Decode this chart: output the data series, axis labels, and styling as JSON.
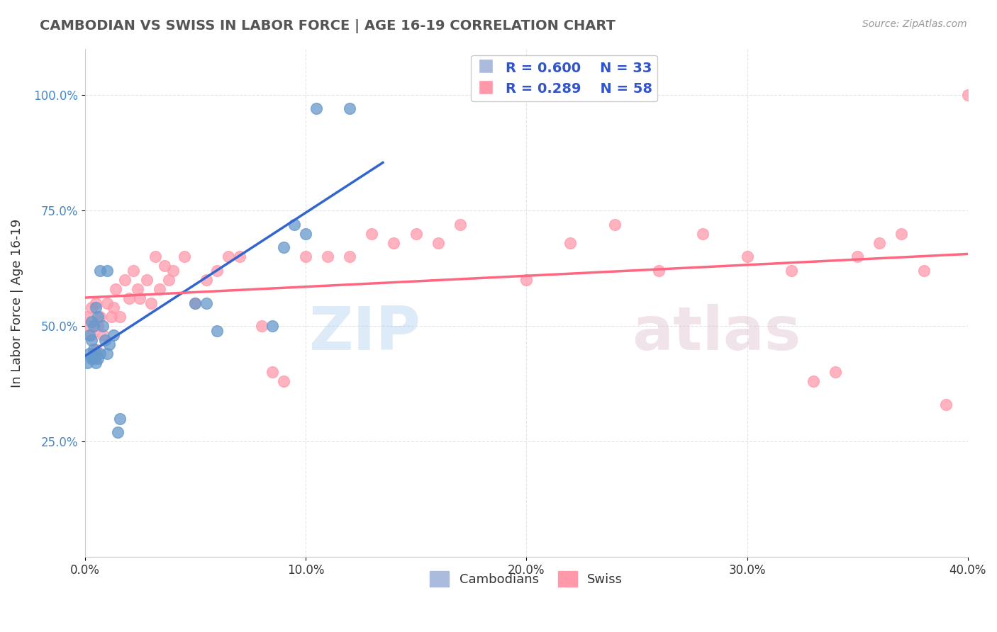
{
  "title": "CAMBODIAN VS SWISS IN LABOR FORCE | AGE 16-19 CORRELATION CHART",
  "source_text": "Source: ZipAtlas.com",
  "ylabel": "In Labor Force | Age 16-19",
  "xlim": [
    0.0,
    0.4
  ],
  "ylim": [
    0.0,
    1.1
  ],
  "xtick_labels": [
    "0.0%",
    "10.0%",
    "20.0%",
    "30.0%",
    "40.0%"
  ],
  "xtick_values": [
    0.0,
    0.1,
    0.2,
    0.3,
    0.4
  ],
  "ytick_labels": [
    "25.0%",
    "50.0%",
    "75.0%",
    "100.0%"
  ],
  "ytick_values": [
    0.25,
    0.5,
    0.75,
    1.0
  ],
  "cambodian_color": "#6699CC",
  "swiss_color": "#FF99AA",
  "cambodian_R": 0.6,
  "cambodian_N": 33,
  "swiss_R": 0.289,
  "swiss_N": 58,
  "cambodian_scatter_x": [
    0.001,
    0.002,
    0.002,
    0.003,
    0.003,
    0.003,
    0.004,
    0.004,
    0.004,
    0.005,
    0.005,
    0.005,
    0.006,
    0.006,
    0.007,
    0.007,
    0.008,
    0.009,
    0.01,
    0.01,
    0.011,
    0.013,
    0.015,
    0.016,
    0.05,
    0.055,
    0.06,
    0.085,
    0.09,
    0.095,
    0.1,
    0.105,
    0.12
  ],
  "cambodian_scatter_y": [
    0.42,
    0.44,
    0.48,
    0.43,
    0.47,
    0.51,
    0.43,
    0.45,
    0.5,
    0.42,
    0.44,
    0.54,
    0.43,
    0.52,
    0.44,
    0.62,
    0.5,
    0.47,
    0.44,
    0.62,
    0.46,
    0.48,
    0.27,
    0.3,
    0.55,
    0.55,
    0.49,
    0.5,
    0.67,
    0.72,
    0.7,
    0.97,
    0.97
  ],
  "swiss_scatter_x": [
    0.001,
    0.002,
    0.003,
    0.003,
    0.005,
    0.005,
    0.006,
    0.007,
    0.008,
    0.01,
    0.012,
    0.013,
    0.014,
    0.016,
    0.018,
    0.02,
    0.022,
    0.024,
    0.025,
    0.028,
    0.03,
    0.032,
    0.034,
    0.036,
    0.038,
    0.04,
    0.045,
    0.05,
    0.055,
    0.06,
    0.065,
    0.07,
    0.08,
    0.085,
    0.09,
    0.1,
    0.11,
    0.12,
    0.13,
    0.14,
    0.15,
    0.16,
    0.17,
    0.2,
    0.22,
    0.24,
    0.26,
    0.28,
    0.3,
    0.32,
    0.33,
    0.34,
    0.35,
    0.36,
    0.37,
    0.38,
    0.39,
    0.4
  ],
  "swiss_scatter_y": [
    0.52,
    0.5,
    0.48,
    0.54,
    0.45,
    0.55,
    0.5,
    0.52,
    0.48,
    0.55,
    0.52,
    0.54,
    0.58,
    0.52,
    0.6,
    0.56,
    0.62,
    0.58,
    0.56,
    0.6,
    0.55,
    0.65,
    0.58,
    0.63,
    0.6,
    0.62,
    0.65,
    0.55,
    0.6,
    0.62,
    0.65,
    0.65,
    0.5,
    0.4,
    0.38,
    0.65,
    0.65,
    0.65,
    0.7,
    0.68,
    0.7,
    0.68,
    0.72,
    0.6,
    0.68,
    0.72,
    0.62,
    0.7,
    0.65,
    0.62,
    0.38,
    0.4,
    0.65,
    0.68,
    0.7,
    0.62,
    0.33,
    1.0
  ],
  "watermark_zip": "ZIP",
  "watermark_atlas": "atlas",
  "background_color": "#FFFFFF",
  "grid_color": "#DDDDDD",
  "trend_cambodian_color": "#3366CC",
  "trend_swiss_color": "#FF6680"
}
